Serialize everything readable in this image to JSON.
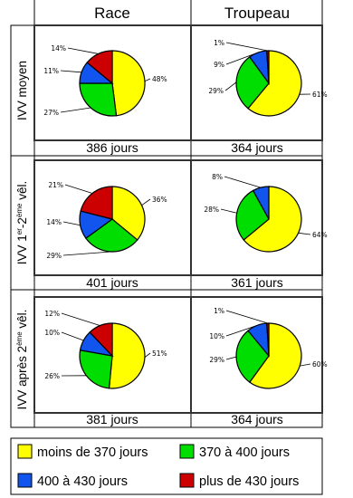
{
  "columns": [
    "Race",
    "Troupeau"
  ],
  "rows": [
    {
      "label": {
        "pre": "IVV moyen",
        "sup1": "",
        "mid": "",
        "sup2": "",
        "post": ""
      },
      "days": [
        "386 jours",
        "364 jours"
      ]
    },
    {
      "label": {
        "pre": "IVV 1",
        "sup1": "er",
        "mid": "-2",
        "sup2": "ème",
        "post": " vêl."
      },
      "days": [
        "401 jours",
        "361 jours"
      ]
    },
    {
      "label": {
        "pre": "IVV après 2",
        "sup1": "ème",
        "mid": " vêl.",
        "sup2": "",
        "post": ""
      },
      "days": [
        "381 jours",
        "364 jours"
      ]
    }
  ],
  "legend": [
    {
      "label": "moins de 370 jours",
      "color": "#ffff00"
    },
    {
      "label": "370 à 400 jours",
      "color": "#00dd00"
    },
    {
      "label": "400 à 430 jours",
      "color": "#1155ee"
    },
    {
      "label": "plus de 430 jours",
      "color": "#cc0000"
    }
  ],
  "chart_data": {
    "type": "pie",
    "categories": [
      "moins de 370 jours",
      "370 à 400 jours",
      "400 à 430 jours",
      "plus de 430 jours"
    ],
    "colors": [
      "#ffff00",
      "#00dd00",
      "#1155ee",
      "#cc0000"
    ],
    "charts": [
      {
        "row": "IVV moyen",
        "column": "Race",
        "values": [
          48,
          27,
          11,
          14
        ],
        "labels": [
          "48%",
          "27%",
          "11%",
          "14%"
        ]
      },
      {
        "row": "IVV moyen",
        "column": "Troupeau",
        "values": [
          61,
          29,
          9,
          1
        ],
        "labels": [
          "61%",
          "29%",
          "9%",
          "1%"
        ]
      },
      {
        "row": "IVV 1er-2ème vêl.",
        "column": "Race",
        "values": [
          36,
          29,
          14,
          21
        ],
        "labels": [
          "36%",
          "29%",
          "14%",
          "21%"
        ]
      },
      {
        "row": "IVV 1er-2ème vêl.",
        "column": "Troupeau",
        "values": [
          64,
          28,
          8,
          0
        ],
        "labels": [
          "64%",
          "28%",
          "8%",
          ""
        ]
      },
      {
        "row": "IVV après 2ème vêl.",
        "column": "Race",
        "values": [
          51,
          26,
          10,
          12
        ],
        "labels": [
          "51%",
          "26%",
          "10%",
          "12%"
        ]
      },
      {
        "row": "IVV après 2ème vêl.",
        "column": "Troupeau",
        "values": [
          60,
          29,
          10,
          1
        ],
        "labels": [
          "60%",
          "29%",
          "10%",
          "1%"
        ]
      }
    ]
  }
}
